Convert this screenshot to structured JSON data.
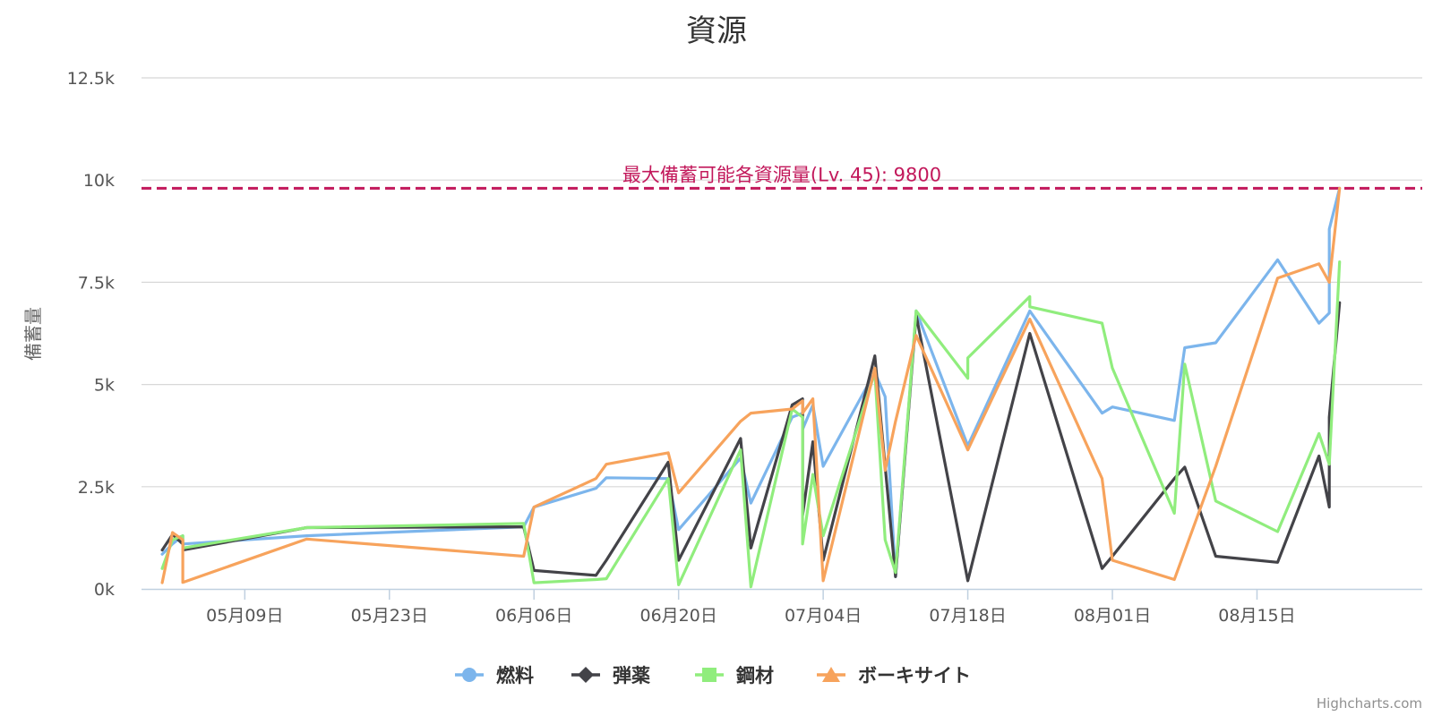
{
  "chart_data": {
    "type": "line",
    "title": "資源",
    "ylabel": "備蓄量",
    "ylim": [
      0,
      12500
    ],
    "yticks": [
      0,
      2500,
      5000,
      7500,
      10000,
      12500
    ],
    "ytick_labels": [
      "0k",
      "2.5k",
      "5k",
      "7.5k",
      "10k",
      "12.5k"
    ],
    "x_axis_type": "datetime",
    "xlim": [
      "2016-04-29",
      "2016-08-31"
    ],
    "xticks": [
      "2016-05-09",
      "2016-05-23",
      "2016-06-06",
      "2016-06-20",
      "2016-07-04",
      "2016-07-18",
      "2016-08-01",
      "2016-08-15"
    ],
    "xtick_labels": [
      "05月09日",
      "05月23日",
      "06月06日",
      "06月20日",
      "07月04日",
      "07月18日",
      "08月01日",
      "08月15日"
    ],
    "plot_line": {
      "value": 9800,
      "label": "最大備蓄可能各資源量(Lv. 45): 9800",
      "color": "#c2185b",
      "style": "dashed"
    },
    "grid": true,
    "legend_position": "bottom-center",
    "series": [
      {
        "name": "燃料",
        "color": "#7cb5ec",
        "marker": "circle",
        "points": [
          [
            "2016-05-01",
            850
          ],
          [
            "2016-05-02",
            1100
          ],
          [
            "2016-05-03",
            1300
          ],
          [
            "2016-05-03",
            1100
          ],
          [
            "2016-05-15",
            1300
          ],
          [
            "2016-06-05",
            1520
          ],
          [
            "2016-06-06",
            2000
          ],
          [
            "2016-06-12",
            2460
          ],
          [
            "2016-06-13",
            2720
          ],
          [
            "2016-06-19",
            2700
          ],
          [
            "2016-06-20",
            1450
          ],
          [
            "2016-06-26",
            3200
          ],
          [
            "2016-06-27",
            2100
          ],
          [
            "2016-07-01",
            4200
          ],
          [
            "2016-07-02",
            4300
          ],
          [
            "2016-07-02",
            3900
          ],
          [
            "2016-07-03",
            4500
          ],
          [
            "2016-07-04",
            3000
          ],
          [
            "2016-07-09",
            5300
          ],
          [
            "2016-07-10",
            4700
          ],
          [
            "2016-07-11",
            300
          ],
          [
            "2016-07-13",
            6800
          ],
          [
            "2016-07-18",
            3500
          ],
          [
            "2016-07-24",
            6800
          ],
          [
            "2016-07-31",
            4300
          ],
          [
            "2016-08-01",
            4450
          ],
          [
            "2016-08-07",
            4120
          ],
          [
            "2016-08-08",
            5900
          ],
          [
            "2016-08-11",
            6020
          ],
          [
            "2016-08-17",
            8050
          ],
          [
            "2016-08-21",
            6500
          ],
          [
            "2016-08-22",
            6750
          ],
          [
            "2016-08-22",
            8800
          ],
          [
            "2016-08-23",
            9800
          ]
        ]
      },
      {
        "name": "弾薬",
        "color": "#434348",
        "marker": "diamond",
        "points": [
          [
            "2016-05-01",
            950
          ],
          [
            "2016-05-02",
            1330
          ],
          [
            "2016-05-03",
            1100
          ],
          [
            "2016-05-03",
            950
          ],
          [
            "2016-05-15",
            1500
          ],
          [
            "2016-06-05",
            1520
          ],
          [
            "2016-06-06",
            450
          ],
          [
            "2016-06-12",
            330
          ],
          [
            "2016-06-13",
            700
          ],
          [
            "2016-06-19",
            3100
          ],
          [
            "2016-06-20",
            700
          ],
          [
            "2016-06-26",
            3680
          ],
          [
            "2016-06-27",
            1000
          ],
          [
            "2016-07-01",
            4500
          ],
          [
            "2016-07-02",
            4650
          ],
          [
            "2016-07-02",
            1800
          ],
          [
            "2016-07-03",
            3600
          ],
          [
            "2016-07-04",
            700
          ],
          [
            "2016-07-09",
            5700
          ],
          [
            "2016-07-10",
            3000
          ],
          [
            "2016-07-11",
            300
          ],
          [
            "2016-07-13",
            6700
          ],
          [
            "2016-07-18",
            200
          ],
          [
            "2016-07-24",
            6250
          ],
          [
            "2016-07-31",
            500
          ],
          [
            "2016-08-01",
            800
          ],
          [
            "2016-08-07",
            2700
          ],
          [
            "2016-08-08",
            2980
          ],
          [
            "2016-08-11",
            800
          ],
          [
            "2016-08-17",
            650
          ],
          [
            "2016-08-21",
            3250
          ],
          [
            "2016-08-22",
            2000
          ],
          [
            "2016-08-22",
            4200
          ],
          [
            "2016-08-23",
            7000
          ]
        ]
      },
      {
        "name": "鋼材",
        "color": "#90ed7d",
        "marker": "square",
        "points": [
          [
            "2016-05-01",
            500
          ],
          [
            "2016-05-02",
            1200
          ],
          [
            "2016-05-03",
            1300
          ],
          [
            "2016-05-03",
            1000
          ],
          [
            "2016-05-15",
            1500
          ],
          [
            "2016-06-05",
            1600
          ],
          [
            "2016-06-06",
            150
          ],
          [
            "2016-06-12",
            230
          ],
          [
            "2016-06-13",
            250
          ],
          [
            "2016-06-19",
            2700
          ],
          [
            "2016-06-20",
            100
          ],
          [
            "2016-06-26",
            3400
          ],
          [
            "2016-06-27",
            50
          ],
          [
            "2016-07-01",
            4400
          ],
          [
            "2016-07-02",
            4200
          ],
          [
            "2016-07-02",
            1100
          ],
          [
            "2016-07-03",
            2800
          ],
          [
            "2016-07-04",
            1300
          ],
          [
            "2016-07-09",
            5300
          ],
          [
            "2016-07-10",
            1200
          ],
          [
            "2016-07-11",
            400
          ],
          [
            "2016-07-13",
            6800
          ],
          [
            "2016-07-18",
            5150
          ],
          [
            "2016-07-18",
            5650
          ],
          [
            "2016-07-24",
            7150
          ],
          [
            "2016-07-24",
            6900
          ],
          [
            "2016-07-31",
            6500
          ],
          [
            "2016-08-01",
            5400
          ],
          [
            "2016-08-07",
            1850
          ],
          [
            "2016-08-08",
            5500
          ],
          [
            "2016-08-11",
            2150
          ],
          [
            "2016-08-17",
            1400
          ],
          [
            "2016-08-21",
            3800
          ],
          [
            "2016-08-22",
            3050
          ],
          [
            "2016-08-23",
            8000
          ]
        ]
      },
      {
        "name": "ボーキサイト",
        "color": "#f7a35c",
        "marker": "triangle",
        "points": [
          [
            "2016-05-01",
            150
          ],
          [
            "2016-05-02",
            1380
          ],
          [
            "2016-05-03",
            1200
          ],
          [
            "2016-05-03",
            160
          ],
          [
            "2016-05-15",
            1220
          ],
          [
            "2016-06-05",
            800
          ],
          [
            "2016-06-06",
            2000
          ],
          [
            "2016-06-12",
            2700
          ],
          [
            "2016-06-13",
            3050
          ],
          [
            "2016-06-19",
            3330
          ],
          [
            "2016-06-20",
            2350
          ],
          [
            "2016-06-26",
            4100
          ],
          [
            "2016-06-27",
            4300
          ],
          [
            "2016-07-01",
            4400
          ],
          [
            "2016-07-02",
            4600
          ],
          [
            "2016-07-02",
            4300
          ],
          [
            "2016-07-03",
            4650
          ],
          [
            "2016-07-04",
            200
          ],
          [
            "2016-07-09",
            5400
          ],
          [
            "2016-07-10",
            2900
          ],
          [
            "2016-07-11",
            4100
          ],
          [
            "2016-07-13",
            6200
          ],
          [
            "2016-07-18",
            3400
          ],
          [
            "2016-07-24",
            6600
          ],
          [
            "2016-07-31",
            2700
          ],
          [
            "2016-08-01",
            700
          ],
          [
            "2016-08-07",
            230
          ],
          [
            "2016-08-11",
            3000
          ],
          [
            "2016-08-17",
            7600
          ],
          [
            "2016-08-21",
            7950
          ],
          [
            "2016-08-22",
            7500
          ],
          [
            "2016-08-23",
            9800
          ]
        ]
      }
    ]
  },
  "credits": "Highcharts.com"
}
